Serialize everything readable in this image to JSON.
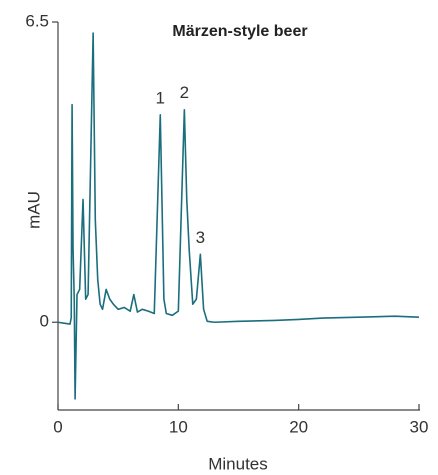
{
  "chart_data": {
    "type": "line",
    "title": "Märzen-style beer",
    "xlabel": "Minutes",
    "ylabel": "mAU",
    "color": "#1b6e7e",
    "x": [
      0,
      0.5,
      1.0,
      1.1,
      1.17,
      1.25,
      1.35,
      1.42,
      1.58,
      1.8,
      2.08,
      2.3,
      2.5,
      2.92,
      3.1,
      3.3,
      3.5,
      3.7,
      4.0,
      4.3,
      4.6,
      5.0,
      5.5,
      6.0,
      6.3,
      6.6,
      7.0,
      7.5,
      8.0,
      8.5,
      8.8,
      9.0,
      9.5,
      10.0,
      10.5,
      10.7,
      10.9,
      11.2,
      11.5,
      11.83,
      12.1,
      12.4,
      13,
      15,
      18,
      20,
      22,
      25,
      28,
      30
    ],
    "values": [
      0,
      -0.02,
      -0.04,
      0.1,
      4.71,
      1.6,
      0.5,
      -1.66,
      0.6,
      0.71,
      2.66,
      0.5,
      0.6,
      6.26,
      2.22,
      0.93,
      0.39,
      0.28,
      0.71,
      0.5,
      0.39,
      0.28,
      0.32,
      0.24,
      0.6,
      0.22,
      0.28,
      0.24,
      0.19,
      4.49,
      0.5,
      0.19,
      0.15,
      0.24,
      4.6,
      2.66,
      1.58,
      0.39,
      0.5,
      1.47,
      0.28,
      0.02,
      0,
      0.02,
      0.04,
      0.06,
      0.09,
      0.11,
      0.13,
      0.11
    ],
    "xlim": [
      0,
      30
    ],
    "ylim": [
      -1.9,
      6.5
    ],
    "xticks": [
      0,
      10,
      20,
      30
    ],
    "yticks": [
      0,
      6.5
    ],
    "annotations": [
      {
        "text": "1",
        "x": 8.5
      },
      {
        "text": "2",
        "x": 10.5
      },
      {
        "text": "3",
        "x": 11.83
      }
    ]
  }
}
